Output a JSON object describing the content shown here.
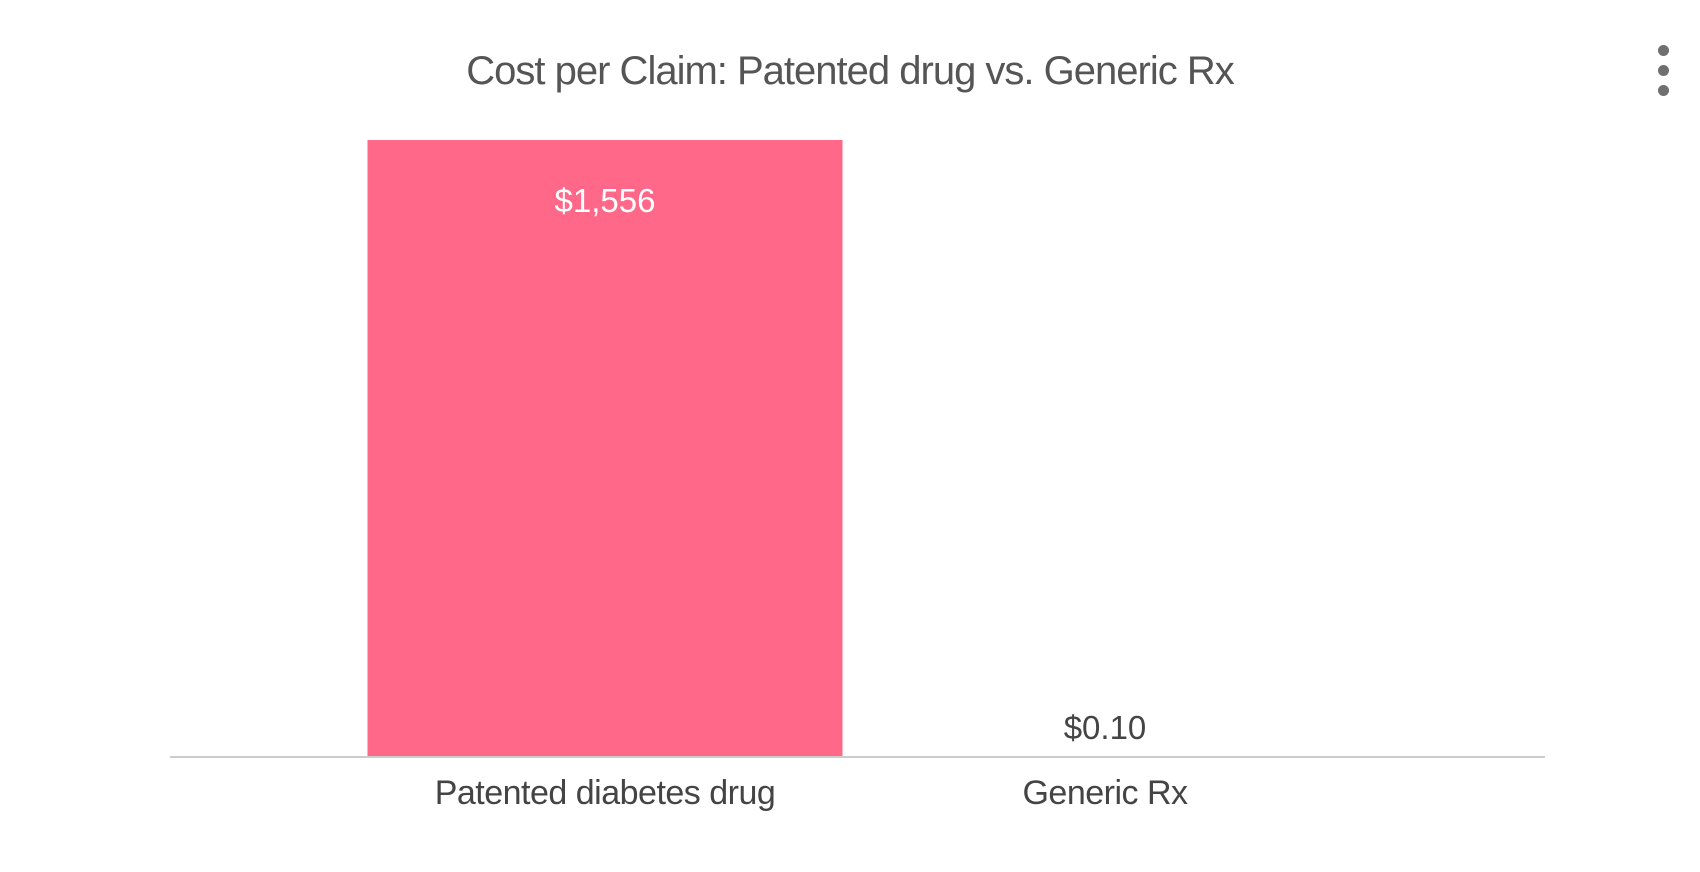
{
  "chart_data": {
    "type": "bar",
    "title": "Cost per Claim:  Patented drug vs. Generic Rx",
    "xlabel": "",
    "ylabel": "",
    "categories": [
      "Patented diabetes drug",
      "Generic Rx"
    ],
    "values": [
      1556,
      0.1
    ],
    "data_labels": [
      "$1,556",
      "$0.10"
    ],
    "ylim": [
      0,
      1556
    ],
    "grid": false,
    "legend": "none"
  },
  "colors": {
    "bar": "#ff6888",
    "title": "#555555",
    "tick_label": "#444444",
    "label_inside": "#ffffff",
    "label_outside": "#444444",
    "baseline": "#cccccc",
    "menu_dots": "#6f6f6f"
  },
  "menu": {
    "icon": "more-vertical-icon"
  }
}
